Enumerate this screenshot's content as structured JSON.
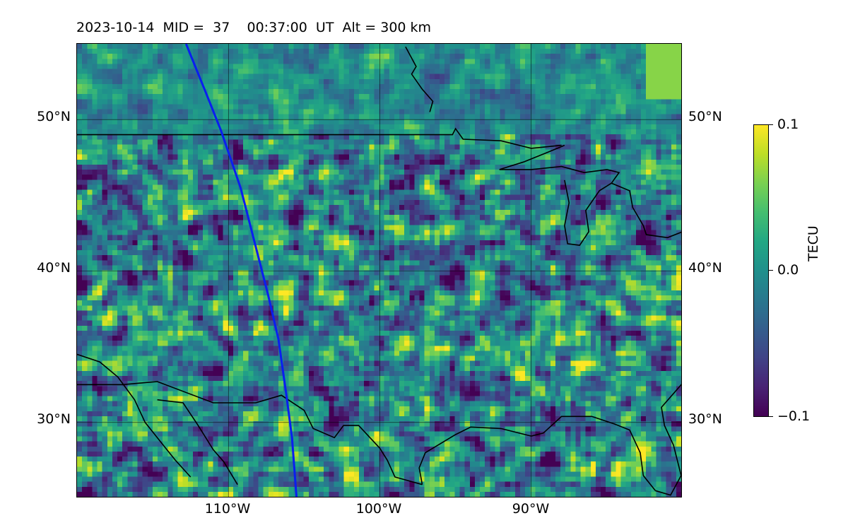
{
  "title": "2023-10-14  MID =  37    00:37:00  UT  Alt = 300 km",
  "map": {
    "lon_range": [
      -120,
      -80
    ],
    "lat_range": [
      25,
      55
    ],
    "lat_labels": [
      "50°N",
      "40°N",
      "30°N"
    ],
    "lat_values": [
      50,
      40,
      30
    ],
    "lon_labels": [
      "110°W",
      "100°W",
      "90°W"
    ],
    "lon_values": [
      -110,
      -100,
      -90
    ],
    "grid": true,
    "track_color": "#0a1ef0",
    "coastline_color": "#000000"
  },
  "colorbar": {
    "label": "TECU",
    "ticks": [
      "0.1",
      "0.0",
      "−0.1"
    ],
    "tick_values": [
      0.1,
      0.0,
      -0.1
    ],
    "colormap": "viridis"
  }
}
